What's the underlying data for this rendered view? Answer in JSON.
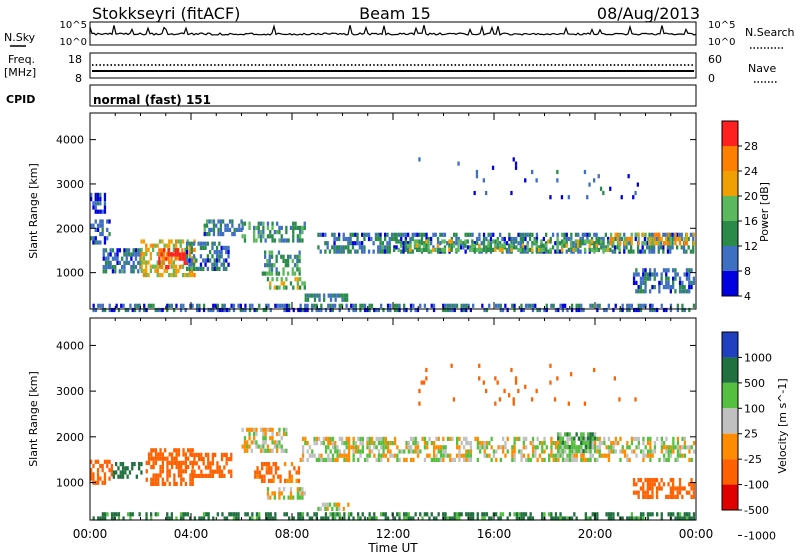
{
  "header": {
    "title": "Stokkseyri (fitACF)",
    "beam": "Beam 15",
    "date": "08/Aug/2013"
  },
  "noise_panel": {
    "left_label": "N.Sky",
    "right_label": "N.Search",
    "left_ticks": [
      "10^5",
      "10^0"
    ],
    "right_ticks": [
      "10^5",
      "10^0"
    ]
  },
  "freq_panel": {
    "left_label_line1": "Freq.",
    "left_label_line2": "[MHz]",
    "left_ticks": [
      "18",
      "8"
    ],
    "right_label": "Nave",
    "right_ticks": [
      "60",
      "0"
    ]
  },
  "cpid_panel": {
    "label": "CPID",
    "text": "normal (fast) 151"
  },
  "x_axis": {
    "title": "Time UT",
    "ticks": [
      "00:00",
      "04:00",
      "08:00",
      "12:00",
      "16:00",
      "20:00",
      "00:00"
    ]
  },
  "colors": {
    "power_scale": [
      "#0000e0",
      "#3f6fc0",
      "#2a8a4a",
      "#5cb85c",
      "#f0a000",
      "#ff7f00",
      "#ff2020"
    ],
    "velocity_scale": [
      "#2040c0",
      "#207040",
      "#55c040",
      "#c0c0c0",
      "#ff8c00",
      "#ff6000",
      "#e00000"
    ]
  },
  "chart_data": [
    {
      "type": "heatmap",
      "ylabel": "Slant Range [km]",
      "ylim": [
        180,
        4600
      ],
      "y_ticks": [
        1000,
        2000,
        3000,
        4000
      ],
      "x_ticks": [
        "00:00",
        "04:00",
        "08:00",
        "12:00",
        "16:00",
        "20:00",
        "00:00"
      ],
      "colorbar": {
        "label": "Power [dB]",
        "ticks": [
          "28",
          "24",
          "20",
          "16",
          "12",
          "8",
          "4"
        ],
        "range": [
          0,
          30
        ]
      },
      "regions": [
        {
          "t": [
            0.1,
            23.9
          ],
          "r": [
            200,
            300
          ],
          "value": 6
        },
        {
          "t": [
            0.0,
            0.6
          ],
          "r": [
            2400,
            2800
          ],
          "value": 5
        },
        {
          "t": [
            0.0,
            0.8
          ],
          "r": [
            1700,
            2200
          ],
          "value": 6
        },
        {
          "t": [
            0.5,
            2.0
          ],
          "r": [
            1050,
            1550
          ],
          "value": 8
        },
        {
          "t": [
            2.0,
            4.1
          ],
          "r": [
            900,
            1750
          ],
          "value": 18
        },
        {
          "t": [
            2.7,
            3.8
          ],
          "r": [
            1100,
            1550
          ],
          "value": 27
        },
        {
          "t": [
            3.8,
            5.5
          ],
          "r": [
            1100,
            1700
          ],
          "value": 8
        },
        {
          "t": [
            4.5,
            6.0
          ],
          "r": [
            1900,
            2200
          ],
          "value": 9
        },
        {
          "t": [
            6.0,
            8.5
          ],
          "r": [
            1700,
            2150
          ],
          "value": 10
        },
        {
          "t": [
            6.8,
            8.3
          ],
          "r": [
            950,
            1500
          ],
          "value": 11
        },
        {
          "t": [
            7.0,
            8.5
          ],
          "r": [
            700,
            900
          ],
          "value": 14
        },
        {
          "t": [
            8.5,
            10.2
          ],
          "r": [
            400,
            530
          ],
          "value": 7
        },
        {
          "t": [
            9.0,
            23.9
          ],
          "r": [
            1450,
            1900
          ],
          "value": 8
        },
        {
          "t": [
            12.0,
            21.0
          ],
          "r": [
            1500,
            1750
          ],
          "value": 14
        },
        {
          "t": [
            20.5,
            23.9
          ],
          "r": [
            1650,
            1900
          ],
          "value": 20
        },
        {
          "t": [
            21.5,
            23.9
          ],
          "r": [
            600,
            1100
          ],
          "value": 7
        },
        {
          "t": [
            13.0,
            22.0
          ],
          "r": [
            2700,
            3600
          ],
          "value": 4
        }
      ]
    },
    {
      "type": "heatmap",
      "ylabel": "Slant Range [km]",
      "ylim": [
        180,
        4600
      ],
      "y_ticks": [
        1000,
        2000,
        3000,
        4000
      ],
      "x_ticks": [
        "00:00",
        "04:00",
        "08:00",
        "12:00",
        "16:00",
        "20:00",
        "00:00"
      ],
      "colorbar": {
        "label": "Velocity [m s^-1]",
        "ticks": [
          "1000",
          "500",
          "100",
          "25",
          "-25",
          "-100",
          "-500",
          "-1000"
        ],
        "range": [
          -1000,
          1000
        ]
      },
      "regions": [
        {
          "t": [
            0.1,
            23.9
          ],
          "r": [
            200,
            350
          ],
          "value": 150
        },
        {
          "t": [
            0.0,
            0.9
          ],
          "r": [
            1000,
            1500
          ],
          "value": -300
        },
        {
          "t": [
            0.9,
            2.0
          ],
          "r": [
            1100,
            1450
          ],
          "value": 200
        },
        {
          "t": [
            2.2,
            4.1
          ],
          "r": [
            950,
            1750
          ],
          "value": -300
        },
        {
          "t": [
            4.0,
            5.6
          ],
          "r": [
            1100,
            1650
          ],
          "value": -200
        },
        {
          "t": [
            6.0,
            7.8
          ],
          "r": [
            1700,
            2200
          ],
          "value": 0
        },
        {
          "t": [
            6.5,
            8.3
          ],
          "r": [
            1000,
            1450
          ],
          "value": -150
        },
        {
          "t": [
            7.0,
            8.5
          ],
          "r": [
            700,
            900
          ],
          "value": 0
        },
        {
          "t": [
            9.0,
            10.2
          ],
          "r": [
            380,
            560
          ],
          "value": 0
        },
        {
          "t": [
            8.3,
            23.9
          ],
          "r": [
            1450,
            2000
          ],
          "value": 0
        },
        {
          "t": [
            18.5,
            20.0
          ],
          "r": [
            1700,
            2100
          ],
          "value": 80
        },
        {
          "t": [
            21.5,
            23.9
          ],
          "r": [
            650,
            1100
          ],
          "value": -400
        },
        {
          "t": [
            13.0,
            22.0
          ],
          "r": [
            2700,
            3600
          ],
          "value": -300
        }
      ]
    }
  ]
}
